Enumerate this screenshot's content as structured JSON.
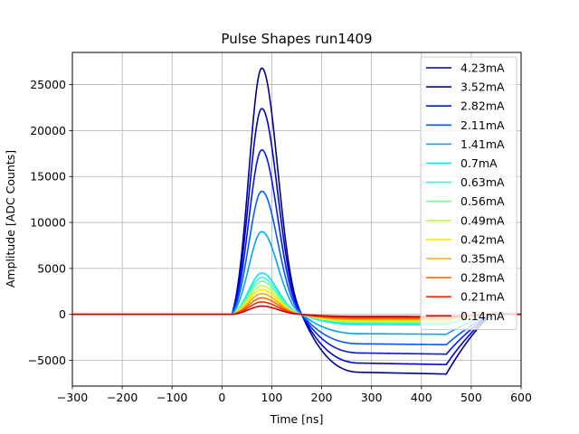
{
  "chart_data": {
    "type": "line",
    "title": "Pulse Shapes run1409",
    "xlabel": "Time [ns]",
    "ylabel": "Amplitude [ADC Counts]",
    "xlim": [
      -300,
      600
    ],
    "ylim": [
      -7800,
      28500
    ],
    "xticks": [
      -300,
      -200,
      -100,
      0,
      100,
      200,
      300,
      400,
      500,
      600
    ],
    "xtick_labels": [
      "−300",
      "−200",
      "−100",
      "0",
      "100",
      "200",
      "300",
      "400",
      "500",
      "600"
    ],
    "yticks": [
      -5000,
      0,
      5000,
      10000,
      15000,
      20000,
      25000
    ],
    "ytick_labels": [
      "−5000",
      "0",
      "5000",
      "10000",
      "15000",
      "20000",
      "25000"
    ],
    "grid": true,
    "legend_position": "top-right",
    "pulse_time_ns": {
      "start": 20,
      "peak": 80,
      "zero_crossing": 160,
      "undershoot_flat_start": 280,
      "undershoot_end": 450,
      "recovery": 540
    },
    "series": [
      {
        "name": "4.23mA",
        "color": "#00008f",
        "peak": 26800,
        "undershoot": -6300
      },
      {
        "name": "3.52mA",
        "color": "#0000d0",
        "peak": 22400,
        "undershoot": -5300
      },
      {
        "name": "2.82mA",
        "color": "#0018ff",
        "peak": 17900,
        "undershoot": -4200
      },
      {
        "name": "2.11mA",
        "color": "#005cff",
        "peak": 13400,
        "undershoot": -3200
      },
      {
        "name": "1.41mA",
        "color": "#00a4ff",
        "peak": 9000,
        "undershoot": -2100
      },
      {
        "name": "0.7mA",
        "color": "#00e4ff",
        "peak": 4500,
        "undershoot": -1100
      },
      {
        "name": "0.63mA",
        "color": "#30ffcf",
        "peak": 4000,
        "undershoot": -950
      },
      {
        "name": "0.56mA",
        "color": "#78ff87",
        "peak": 3600,
        "undershoot": -850
      },
      {
        "name": "0.49mA",
        "color": "#c0ff3f",
        "peak": 3100,
        "undershoot": -750
      },
      {
        "name": "0.42mA",
        "color": "#ffe600",
        "peak": 2700,
        "undershoot": -650
      },
      {
        "name": "0.35mA",
        "color": "#ffa800",
        "peak": 2250,
        "undershoot": -540
      },
      {
        "name": "0.28mA",
        "color": "#ff6800",
        "peak": 1800,
        "undershoot": -430
      },
      {
        "name": "0.21mA",
        "color": "#ff2900",
        "peak": 1350,
        "undershoot": -320
      },
      {
        "name": "0.14mA",
        "color": "#d00000",
        "peak": 900,
        "undershoot": -220
      }
    ]
  }
}
